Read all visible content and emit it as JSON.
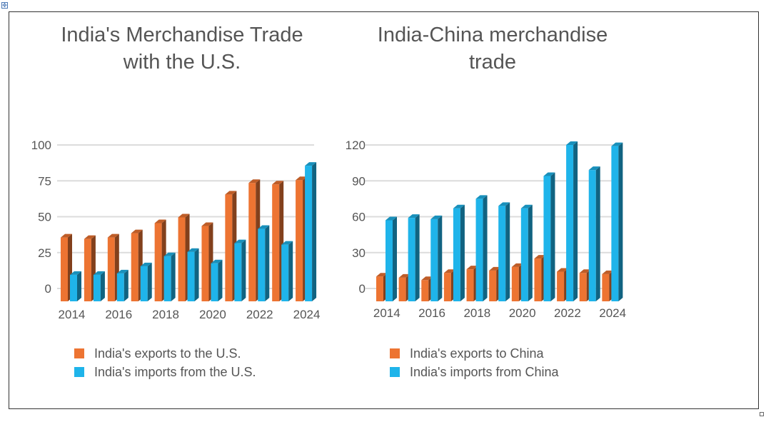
{
  "colors": {
    "exports": "#ed7432",
    "imports": "#1fb4ea",
    "grid": "#dcdcdc",
    "text": "#555555"
  },
  "chart_data": [
    {
      "type": "bar",
      "title_lines": [
        "India's Merchandise Trade",
        "with the U.S."
      ],
      "categories": [
        "2014",
        "2015",
        "2016",
        "2017",
        "2018",
        "2019",
        "2020",
        "2021",
        "2022",
        "2023",
        "2024"
      ],
      "x_tick_labels": [
        "2014",
        "2016",
        "2018",
        "2020",
        "2022",
        "2024"
      ],
      "y_ticks": [
        "0",
        "25",
        "50",
        "75",
        "100"
      ],
      "ylim": [
        0,
        100
      ],
      "series": [
        {
          "name": "India's exports to the U.S.",
          "values": [
            38,
            37,
            38,
            41,
            48,
            52,
            46,
            68,
            76,
            75,
            78
          ]
        },
        {
          "name": "India's imports from the U.S.",
          "values": [
            12,
            12,
            13,
            18,
            25,
            28,
            20,
            34,
            44,
            33,
            88
          ]
        }
      ],
      "grid": true,
      "legend_position": "bottom"
    },
    {
      "type": "bar",
      "title_lines": [
        "India-China merchandise",
        "trade"
      ],
      "categories": [
        "2014",
        "2015",
        "2016",
        "2017",
        "2018",
        "2019",
        "2020",
        "2021",
        "2022",
        "2023",
        "2024"
      ],
      "x_tick_labels": [
        "2014",
        "2016",
        "2018",
        "2020",
        "2022",
        "2024"
      ],
      "y_ticks": [
        "0",
        "30",
        "60",
        "90",
        "120"
      ],
      "ylim": [
        0,
        120
      ],
      "series": [
        {
          "name": "India's exports to China",
          "values": [
            13,
            12,
            10,
            16,
            19,
            18,
            21,
            28,
            17,
            16,
            15
          ]
        },
        {
          "name": "India's imports from China",
          "values": [
            60,
            62,
            61,
            70,
            78,
            72,
            70,
            97,
            123,
            102,
            122
          ]
        }
      ],
      "grid": true,
      "legend_position": "bottom"
    }
  ]
}
